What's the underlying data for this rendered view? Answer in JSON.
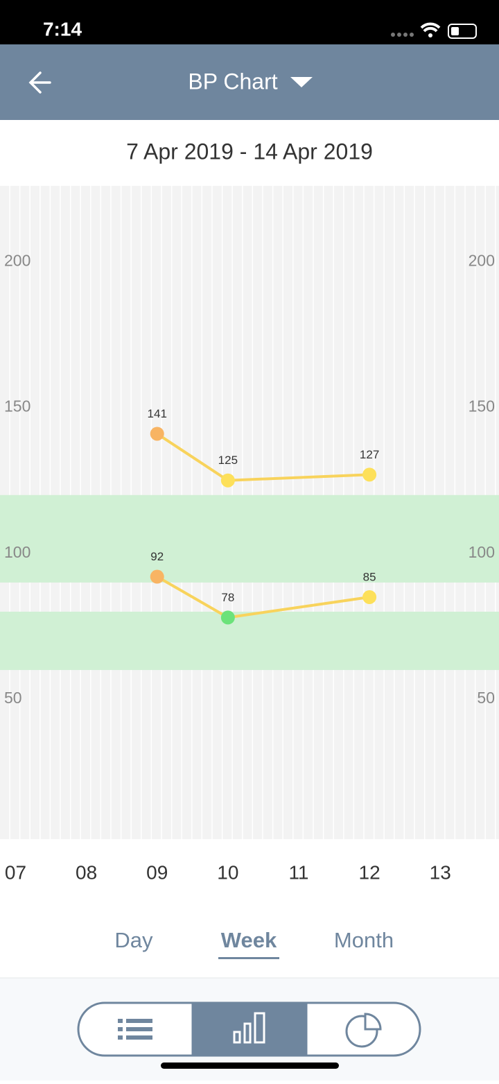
{
  "status_bar": {
    "time": "7:14"
  },
  "header": {
    "title": "BP Chart"
  },
  "date_range": "7 Apr 2019 - 14 Apr 2019",
  "chart_data": {
    "type": "line",
    "x": [
      9,
      10,
      12
    ],
    "series": [
      {
        "color": "#f8d35c",
        "values": [
          141,
          125,
          127
        ],
        "point_colors": [
          "#f8b463",
          "#fde05a",
          "#fde05a"
        ]
      },
      {
        "color": "#f8d35c",
        "values": [
          92,
          78,
          85
        ],
        "point_colors": [
          "#f8b463",
          "#6be27a",
          "#fde05a"
        ]
      }
    ],
    "xlim": [
      6.78,
      13.83
    ],
    "xticks": [
      {
        "value": 7,
        "label": "07"
      },
      {
        "value": 8,
        "label": "08"
      },
      {
        "value": 9,
        "label": "09"
      },
      {
        "value": 10,
        "label": "10"
      },
      {
        "value": 11,
        "label": "11"
      },
      {
        "value": 12,
        "label": "12"
      },
      {
        "value": 13,
        "label": "13"
      }
    ],
    "ylim": [
      2,
      226
    ],
    "yticks": [
      50,
      100,
      150,
      200
    ],
    "bands": [
      [
        90,
        120
      ],
      [
        60,
        80
      ]
    ],
    "band_color": "#d0f0d4"
  },
  "tabs": [
    "Day",
    "Week",
    "Month"
  ],
  "active_tab": 1
}
